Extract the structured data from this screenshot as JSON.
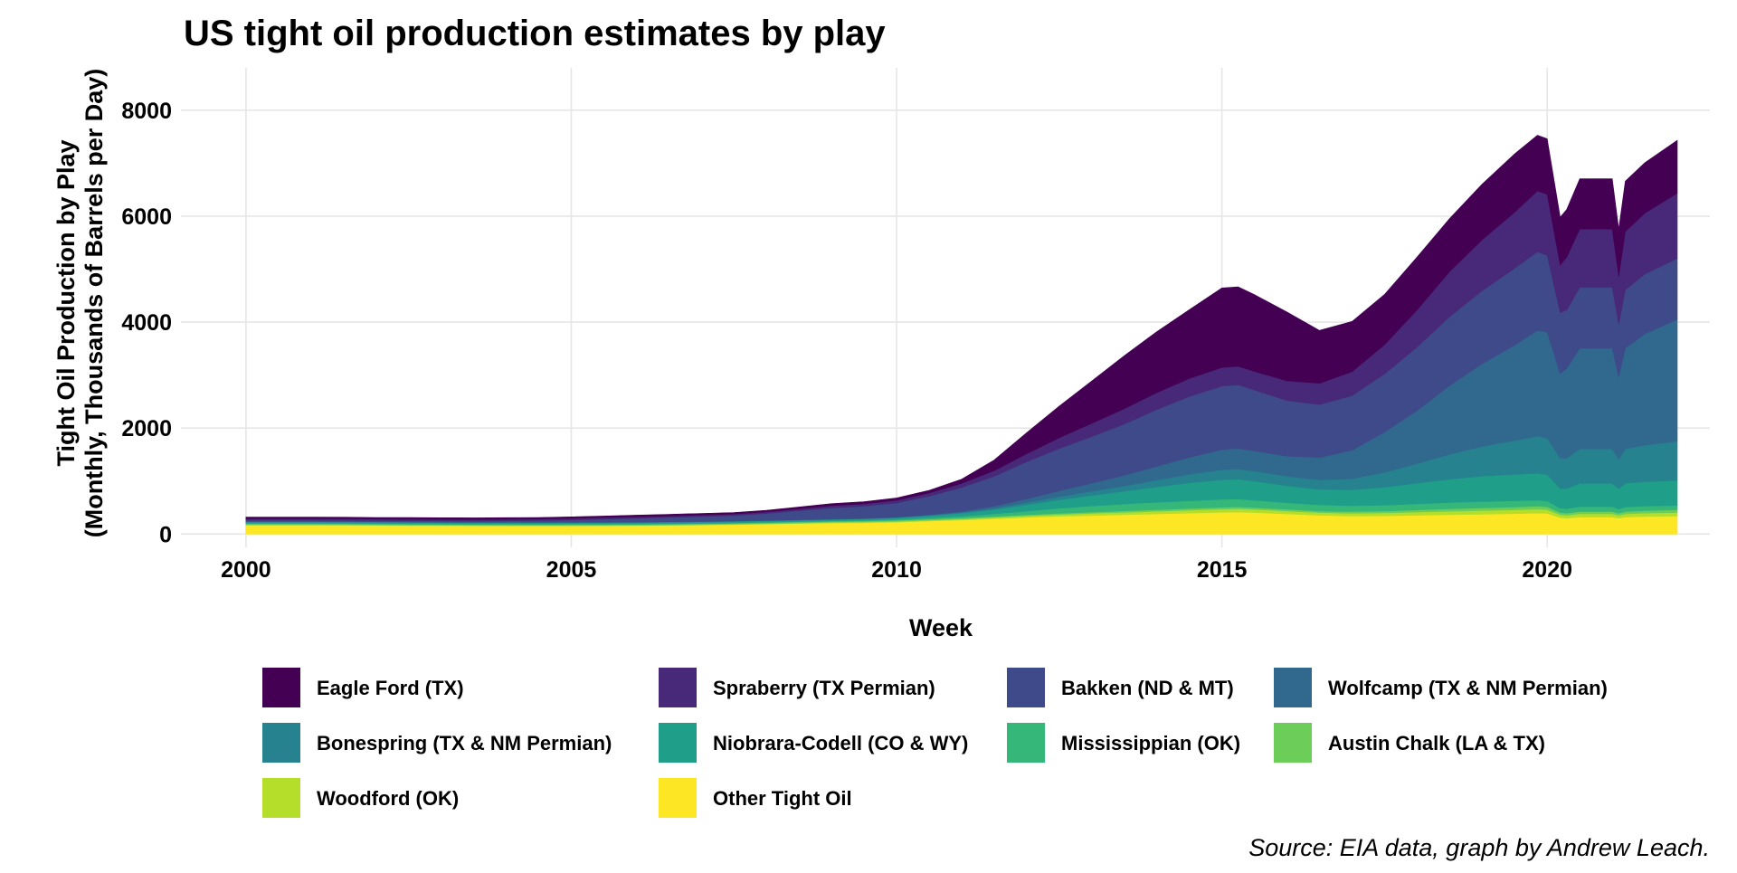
{
  "chart_data": {
    "type": "area",
    "stacked": true,
    "title": "US tight oil production estimates by play",
    "xlabel": "Week",
    "ylabel": [
      "Tight Oil Production by Play",
      "(Monthly, Thousands of Barrels per Day)"
    ],
    "caption": "Source: EIA data, graph by Andrew Leach.",
    "xlim": [
      1999,
      2022.5
    ],
    "ylim": [
      -250,
      8800
    ],
    "x_ticks": [
      2000,
      2005,
      2010,
      2015,
      2020
    ],
    "y_ticks": [
      0,
      2000,
      4000,
      6000,
      8000
    ],
    "grid": true,
    "legend_position": "bottom",
    "legend_columns": 4,
    "x": [
      2000.0,
      2000.5,
      2001.0,
      2001.5,
      2002.0,
      2002.5,
      2003.0,
      2003.5,
      2004.0,
      2004.5,
      2005.0,
      2005.5,
      2006.0,
      2006.5,
      2007.0,
      2007.5,
      2008.0,
      2008.5,
      2009.0,
      2009.5,
      2010.0,
      2010.5,
      2011.0,
      2011.5,
      2012.0,
      2012.5,
      2013.0,
      2013.5,
      2014.0,
      2014.5,
      2015.0,
      2015.25,
      2015.5,
      2016.0,
      2016.5,
      2017.0,
      2017.5,
      2018.0,
      2018.5,
      2019.0,
      2019.5,
      2019.85,
      2020.0,
      2020.2,
      2020.3,
      2020.5,
      2021.0,
      2021.1,
      2021.2,
      2021.5,
      2022.0
    ],
    "series": [
      {
        "name": "Other Tight Oil",
        "color": "#FDE725",
        "values": [
          170,
          170,
          170,
          168,
          165,
          162,
          160,
          158,
          157,
          156,
          157,
          158,
          160,
          165,
          172,
          180,
          190,
          200,
          210,
          215,
          225,
          245,
          265,
          290,
          315,
          335,
          350,
          365,
          380,
          395,
          410,
          415,
          405,
          380,
          355,
          340,
          345,
          355,
          365,
          375,
          385,
          395,
          390,
          310,
          300,
          320,
          320,
          300,
          320,
          330,
          340
        ]
      },
      {
        "name": "Woodford (OK)",
        "color": "#B5DE2B",
        "values": [
          5,
          5,
          5,
          5,
          5,
          5,
          5,
          5,
          5,
          5,
          5,
          5,
          5,
          5,
          5,
          5,
          6,
          8,
          10,
          12,
          15,
          18,
          20,
          25,
          30,
          35,
          40,
          45,
          50,
          55,
          60,
          62,
          60,
          55,
          50,
          52,
          55,
          60,
          65,
          70,
          72,
          75,
          72,
          55,
          55,
          62,
          62,
          55,
          60,
          65,
          68
        ]
      },
      {
        "name": "Austin Chalk (LA & TX)",
        "color": "#6DCD59",
        "values": [
          20,
          20,
          20,
          20,
          19,
          19,
          18,
          18,
          18,
          18,
          18,
          18,
          18,
          18,
          18,
          18,
          18,
          18,
          18,
          18,
          18,
          18,
          18,
          18,
          20,
          22,
          25,
          28,
          30,
          33,
          35,
          36,
          35,
          32,
          30,
          32,
          35,
          40,
          45,
          50,
          55,
          58,
          55,
          40,
          40,
          45,
          45,
          38,
          45,
          48,
          50
        ]
      },
      {
        "name": "Mississippian (OK)",
        "color": "#35B779",
        "values": [
          10,
          10,
          10,
          10,
          10,
          10,
          10,
          10,
          10,
          10,
          10,
          10,
          10,
          10,
          10,
          10,
          10,
          10,
          12,
          14,
          18,
          25,
          35,
          50,
          70,
          95,
          115,
          130,
          140,
          145,
          150,
          148,
          140,
          125,
          115,
          110,
          110,
          115,
          120,
          120,
          115,
          110,
          105,
          85,
          85,
          90,
          90,
          80,
          85,
          85,
          85
        ]
      },
      {
        "name": "Niobrara-Codell (CO & WY)",
        "color": "#1F9E89",
        "values": [
          25,
          25,
          25,
          25,
          25,
          25,
          25,
          25,
          25,
          25,
          25,
          25,
          25,
          25,
          25,
          25,
          25,
          25,
          25,
          28,
          32,
          40,
          55,
          80,
          120,
          160,
          200,
          240,
          290,
          340,
          370,
          375,
          360,
          320,
          295,
          300,
          340,
          390,
          440,
          480,
          500,
          510,
          500,
          370,
          380,
          440,
          440,
          380,
          450,
          460,
          470
        ]
      },
      {
        "name": "Bonespring (TX & NM Permian)",
        "color": "#26828E",
        "values": [
          5,
          5,
          5,
          5,
          5,
          5,
          5,
          5,
          5,
          5,
          5,
          5,
          5,
          5,
          5,
          5,
          5,
          5,
          5,
          5,
          5,
          10,
          15,
          25,
          40,
          60,
          80,
          100,
          130,
          160,
          190,
          195,
          190,
          180,
          180,
          210,
          280,
          370,
          470,
          560,
          640,
          700,
          690,
          570,
          570,
          650,
          650,
          560,
          650,
          690,
          740
        ]
      },
      {
        "name": "Wolfcamp (TX & NM Permian)",
        "color": "#31688E",
        "values": [
          5,
          5,
          5,
          5,
          5,
          5,
          5,
          5,
          5,
          5,
          5,
          5,
          5,
          5,
          5,
          5,
          5,
          5,
          5,
          5,
          5,
          10,
          20,
          40,
          70,
          110,
          150,
          200,
          260,
          320,
          380,
          385,
          380,
          380,
          420,
          540,
          760,
          1000,
          1300,
          1560,
          1800,
          2000,
          2000,
          1600,
          1700,
          1900,
          1900,
          1550,
          1900,
          2100,
          2300
        ]
      },
      {
        "name": "Bakken (ND & MT)",
        "color": "#3E4A89",
        "values": [
          20,
          20,
          20,
          20,
          20,
          20,
          20,
          20,
          25,
          30,
          40,
          55,
          70,
          80,
          90,
          100,
          130,
          170,
          210,
          230,
          270,
          350,
          450,
          560,
          700,
          800,
          880,
          970,
          1070,
          1150,
          1200,
          1200,
          1150,
          1050,
          1000,
          1030,
          1100,
          1200,
          1300,
          1380,
          1450,
          1480,
          1450,
          1150,
          1100,
          1150,
          1150,
          1000,
          1100,
          1130,
          1150
        ]
      },
      {
        "name": "Spraberry (TX Permian)",
        "color": "#482878",
        "values": [
          30,
          30,
          30,
          30,
          30,
          30,
          30,
          30,
          30,
          30,
          30,
          30,
          30,
          30,
          30,
          30,
          30,
          35,
          40,
          45,
          50,
          60,
          80,
          110,
          150,
          200,
          250,
          290,
          320,
          340,
          350,
          350,
          350,
          370,
          400,
          450,
          550,
          700,
          850,
          960,
          1060,
          1150,
          1150,
          900,
          1000,
          1100,
          1100,
          900,
          1100,
          1150,
          1230
        ]
      },
      {
        "name": "Eagle Ford (TX)",
        "color": "#440154",
        "values": [
          30,
          30,
          30,
          30,
          30,
          30,
          30,
          30,
          30,
          30,
          30,
          30,
          30,
          30,
          30,
          30,
          30,
          35,
          40,
          40,
          45,
          50,
          80,
          200,
          400,
          600,
          800,
          1000,
          1150,
          1300,
          1500,
          1500,
          1450,
          1300,
          1000,
          950,
          950,
          1000,
          1000,
          1050,
          1100,
          1050,
          1050,
          900,
          900,
          950,
          950,
          900,
          950,
          950,
          1000
        ]
      }
    ],
    "legend_order": [
      "Eagle Ford (TX)",
      "Spraberry (TX Permian)",
      "Bakken (ND & MT)",
      "Wolfcamp (TX & NM Permian)",
      "Bonespring (TX & NM Permian)",
      "Niobrara-Codell (CO & WY)",
      "Mississippian (OK)",
      "Austin Chalk (LA & TX)",
      "Woodford (OK)",
      "Other Tight Oil"
    ]
  }
}
